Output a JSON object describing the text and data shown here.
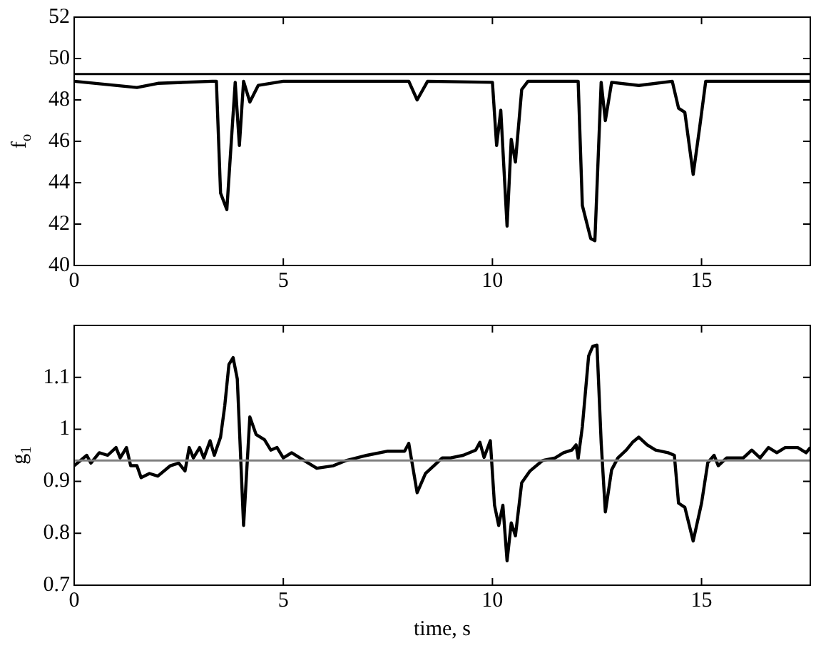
{
  "chart_data": [
    {
      "type": "line",
      "ylabel": "f$_{o}$",
      "xlim": [
        0,
        17.6
      ],
      "xticks": [
        0,
        5,
        10,
        15
      ],
      "ylim": [
        40,
        52
      ],
      "yticks": [
        40,
        42,
        44,
        46,
        48,
        50,
        52
      ],
      "grid": false,
      "legend": false,
      "marker": "none",
      "line_style": "solid",
      "ref_lines": [
        {
          "axis": "y",
          "value": 49.25,
          "color": "#000000"
        }
      ],
      "series": [
        {
          "color": "#000000",
          "x": [
            0,
            1.5,
            2,
            3.3,
            3.4,
            3.5,
            3.65,
            3.85,
            3.95,
            4.05,
            4.2,
            4.4,
            5,
            8,
            8.2,
            8.45,
            10,
            10.1,
            10.2,
            10.35,
            10.45,
            10.55,
            10.7,
            10.85,
            12.05,
            12.15,
            12.35,
            12.45,
            12.6,
            12.7,
            12.85,
            13.5,
            14.3,
            14.45,
            14.6,
            14.8,
            14.95,
            15.1,
            17.6
          ],
          "values": [
            48.9,
            48.6,
            48.8,
            48.9,
            48.9,
            43.5,
            42.7,
            48.85,
            45.8,
            48.9,
            47.9,
            48.7,
            48.9,
            48.9,
            48.0,
            48.9,
            48.85,
            45.8,
            47.5,
            41.9,
            46.1,
            45.0,
            48.5,
            48.9,
            48.9,
            42.9,
            41.3,
            41.2,
            48.85,
            47.0,
            48.85,
            48.7,
            48.9,
            47.6,
            47.4,
            44.4,
            46.6,
            48.9,
            48.9
          ]
        }
      ]
    },
    {
      "type": "line",
      "ylabel": "g$_{1}$",
      "xlabel": "time, s",
      "xlim": [
        0,
        17.6
      ],
      "xticks": [
        0,
        5,
        10,
        15
      ],
      "ylim": [
        0.7,
        1.2
      ],
      "yticks": [
        0.7,
        0.8,
        0.9,
        1,
        1.1
      ],
      "grid": false,
      "legend": false,
      "marker": "none",
      "line_style": "solid",
      "ref_lines": [
        {
          "axis": "y",
          "value": 0.94,
          "color": "#808080"
        }
      ],
      "series": [
        {
          "color": "#000000",
          "x": [
            0,
            0.3,
            0.4,
            0.6,
            0.8,
            1.0,
            1.1,
            1.25,
            1.35,
            1.5,
            1.6,
            1.8,
            2.0,
            2.3,
            2.5,
            2.65,
            2.75,
            2.85,
            3.0,
            3.1,
            3.25,
            3.35,
            3.5,
            3.6,
            3.7,
            3.8,
            3.9,
            4.05,
            4.2,
            4.35,
            4.55,
            4.7,
            4.85,
            5.0,
            5.2,
            5.5,
            5.8,
            6.2,
            6.5,
            7.0,
            7.5,
            7.9,
            8.0,
            8.2,
            8.4,
            8.6,
            8.8,
            9.0,
            9.3,
            9.6,
            9.7,
            9.8,
            9.95,
            10.05,
            10.15,
            10.25,
            10.35,
            10.45,
            10.55,
            10.7,
            10.9,
            11.2,
            11.5,
            11.7,
            11.9,
            12.0,
            12.05,
            12.15,
            12.3,
            12.4,
            12.5,
            12.6,
            12.7,
            12.85,
            13.0,
            13.2,
            13.35,
            13.5,
            13.7,
            13.9,
            14.2,
            14.35,
            14.45,
            14.6,
            14.8,
            15.0,
            15.15,
            15.3,
            15.4,
            15.6,
            16.0,
            16.2,
            16.4,
            16.6,
            16.8,
            17.0,
            17.3,
            17.5,
            17.6
          ],
          "values": [
            0.93,
            0.95,
            0.935,
            0.955,
            0.95,
            0.965,
            0.945,
            0.965,
            0.93,
            0.93,
            0.907,
            0.915,
            0.91,
            0.93,
            0.935,
            0.92,
            0.965,
            0.945,
            0.965,
            0.945,
            0.978,
            0.95,
            0.985,
            1.045,
            1.125,
            1.138,
            1.097,
            0.815,
            1.024,
            0.99,
            0.98,
            0.96,
            0.965,
            0.945,
            0.955,
            0.94,
            0.925,
            0.93,
            0.94,
            0.95,
            0.958,
            0.958,
            0.973,
            0.878,
            0.915,
            0.93,
            0.945,
            0.945,
            0.95,
            0.96,
            0.975,
            0.946,
            0.978,
            0.854,
            0.815,
            0.854,
            0.747,
            0.82,
            0.795,
            0.897,
            0.92,
            0.94,
            0.945,
            0.955,
            0.96,
            0.97,
            0.944,
            1.005,
            1.141,
            1.16,
            1.162,
            0.975,
            0.841,
            0.922,
            0.945,
            0.96,
            0.975,
            0.985,
            0.97,
            0.96,
            0.955,
            0.95,
            0.858,
            0.85,
            0.785,
            0.858,
            0.936,
            0.95,
            0.93,
            0.945,
            0.945,
            0.96,
            0.945,
            0.965,
            0.955,
            0.965,
            0.965,
            0.955,
            0.965
          ]
        }
      ]
    }
  ]
}
